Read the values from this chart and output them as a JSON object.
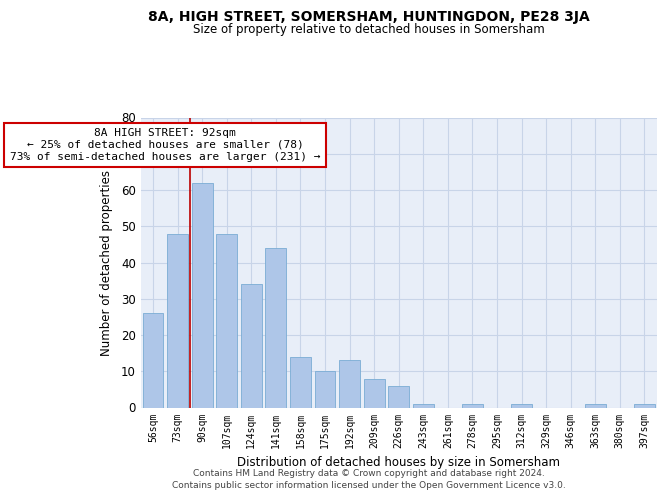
{
  "title": "8A, HIGH STREET, SOMERSHAM, HUNTINGDON, PE28 3JA",
  "subtitle": "Size of property relative to detached houses in Somersham",
  "xlabel": "Distribution of detached houses by size in Somersham",
  "ylabel": "Number of detached properties",
  "categories": [
    "56sqm",
    "73sqm",
    "90sqm",
    "107sqm",
    "124sqm",
    "141sqm",
    "158sqm",
    "175sqm",
    "192sqm",
    "209sqm",
    "226sqm",
    "243sqm",
    "261sqm",
    "278sqm",
    "295sqm",
    "312sqm",
    "329sqm",
    "346sqm",
    "363sqm",
    "380sqm",
    "397sqm"
  ],
  "values": [
    26,
    48,
    62,
    48,
    34,
    44,
    14,
    10,
    13,
    8,
    6,
    1,
    0,
    1,
    0,
    1,
    0,
    0,
    1,
    0,
    1
  ],
  "bar_color": "#aec6e8",
  "bar_edge_color": "#7aacd4",
  "highlight_bar_index": 2,
  "highlight_color": "#bb0000",
  "annotation_text": "8A HIGH STREET: 92sqm\n← 25% of detached houses are smaller (78)\n73% of semi-detached houses are larger (231) →",
  "annotation_box_color": "#ffffff",
  "annotation_box_edge_color": "#cc0000",
  "ylim": [
    0,
    80
  ],
  "yticks": [
    0,
    10,
    20,
    30,
    40,
    50,
    60,
    70,
    80
  ],
  "bg_color": "#e8eef8",
  "grid_color": "#c8d4e8",
  "footer1": "Contains HM Land Registry data © Crown copyright and database right 2024.",
  "footer2": "Contains public sector information licensed under the Open Government Licence v3.0."
}
